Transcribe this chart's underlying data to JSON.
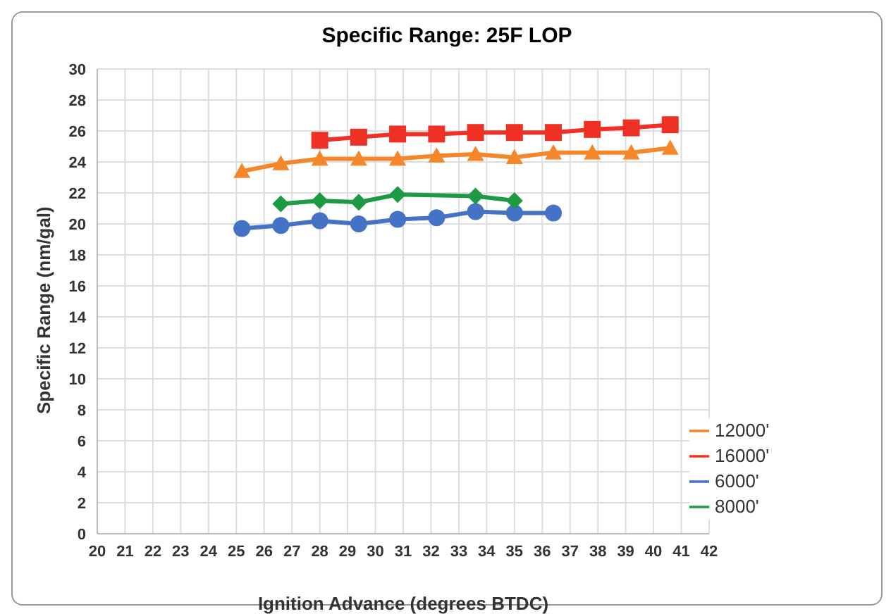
{
  "chart_data": {
    "type": "line",
    "title": "Specific Range: 25F LOP",
    "xlabel": "Ignition Advance (degrees BTDC)",
    "ylabel": "Specific Range (nm/gal)",
    "series": [
      {
        "name": "6000'",
        "color": "#4472c4",
        "marker": "circle",
        "x": [
          25.2,
          26.6,
          28.0,
          29.4,
          30.8,
          32.2,
          33.6,
          35.0,
          36.4
        ],
        "values": [
          19.7,
          19.9,
          20.2,
          20.0,
          20.3,
          20.4,
          20.8,
          20.7,
          20.7
        ]
      },
      {
        "name": "8000'",
        "color": "#1e9a45",
        "marker": "diamond",
        "x": [
          26.6,
          28.0,
          29.4,
          30.8,
          33.6,
          35.0
        ],
        "values": [
          21.3,
          21.5,
          21.4,
          21.9,
          21.8,
          21.5
        ]
      },
      {
        "name": "12000'",
        "color": "#f5862a",
        "marker": "triangle",
        "x": [
          25.2,
          26.6,
          28.0,
          29.4,
          30.8,
          32.2,
          33.6,
          35.0,
          36.4,
          37.8,
          39.2,
          40.6
        ],
        "values": [
          23.4,
          23.9,
          24.2,
          24.2,
          24.2,
          24.4,
          24.5,
          24.3,
          24.6,
          24.6,
          24.6,
          24.9
        ]
      },
      {
        "name": "16000'",
        "color": "#ee3124",
        "marker": "square",
        "x": [
          28.0,
          29.4,
          30.8,
          32.2,
          33.6,
          35.0,
          36.4,
          37.8,
          39.2,
          40.6
        ],
        "values": [
          25.4,
          25.6,
          25.8,
          25.8,
          25.9,
          25.9,
          25.9,
          26.1,
          26.2,
          26.4
        ]
      }
    ],
    "xlim": [
      20,
      42
    ],
    "xticks": [
      20,
      21,
      22,
      23,
      24,
      25,
      26,
      27,
      28,
      29,
      30,
      31,
      32,
      33,
      34,
      35,
      36,
      37,
      38,
      39,
      40,
      41,
      42
    ],
    "ylim": [
      0,
      30
    ],
    "yticks": [
      0,
      2,
      4,
      6,
      8,
      10,
      12,
      14,
      16,
      18,
      20,
      22,
      24,
      26,
      28,
      30
    ],
    "grid": true,
    "legend": "bottom right",
    "line_style": "solid"
  }
}
